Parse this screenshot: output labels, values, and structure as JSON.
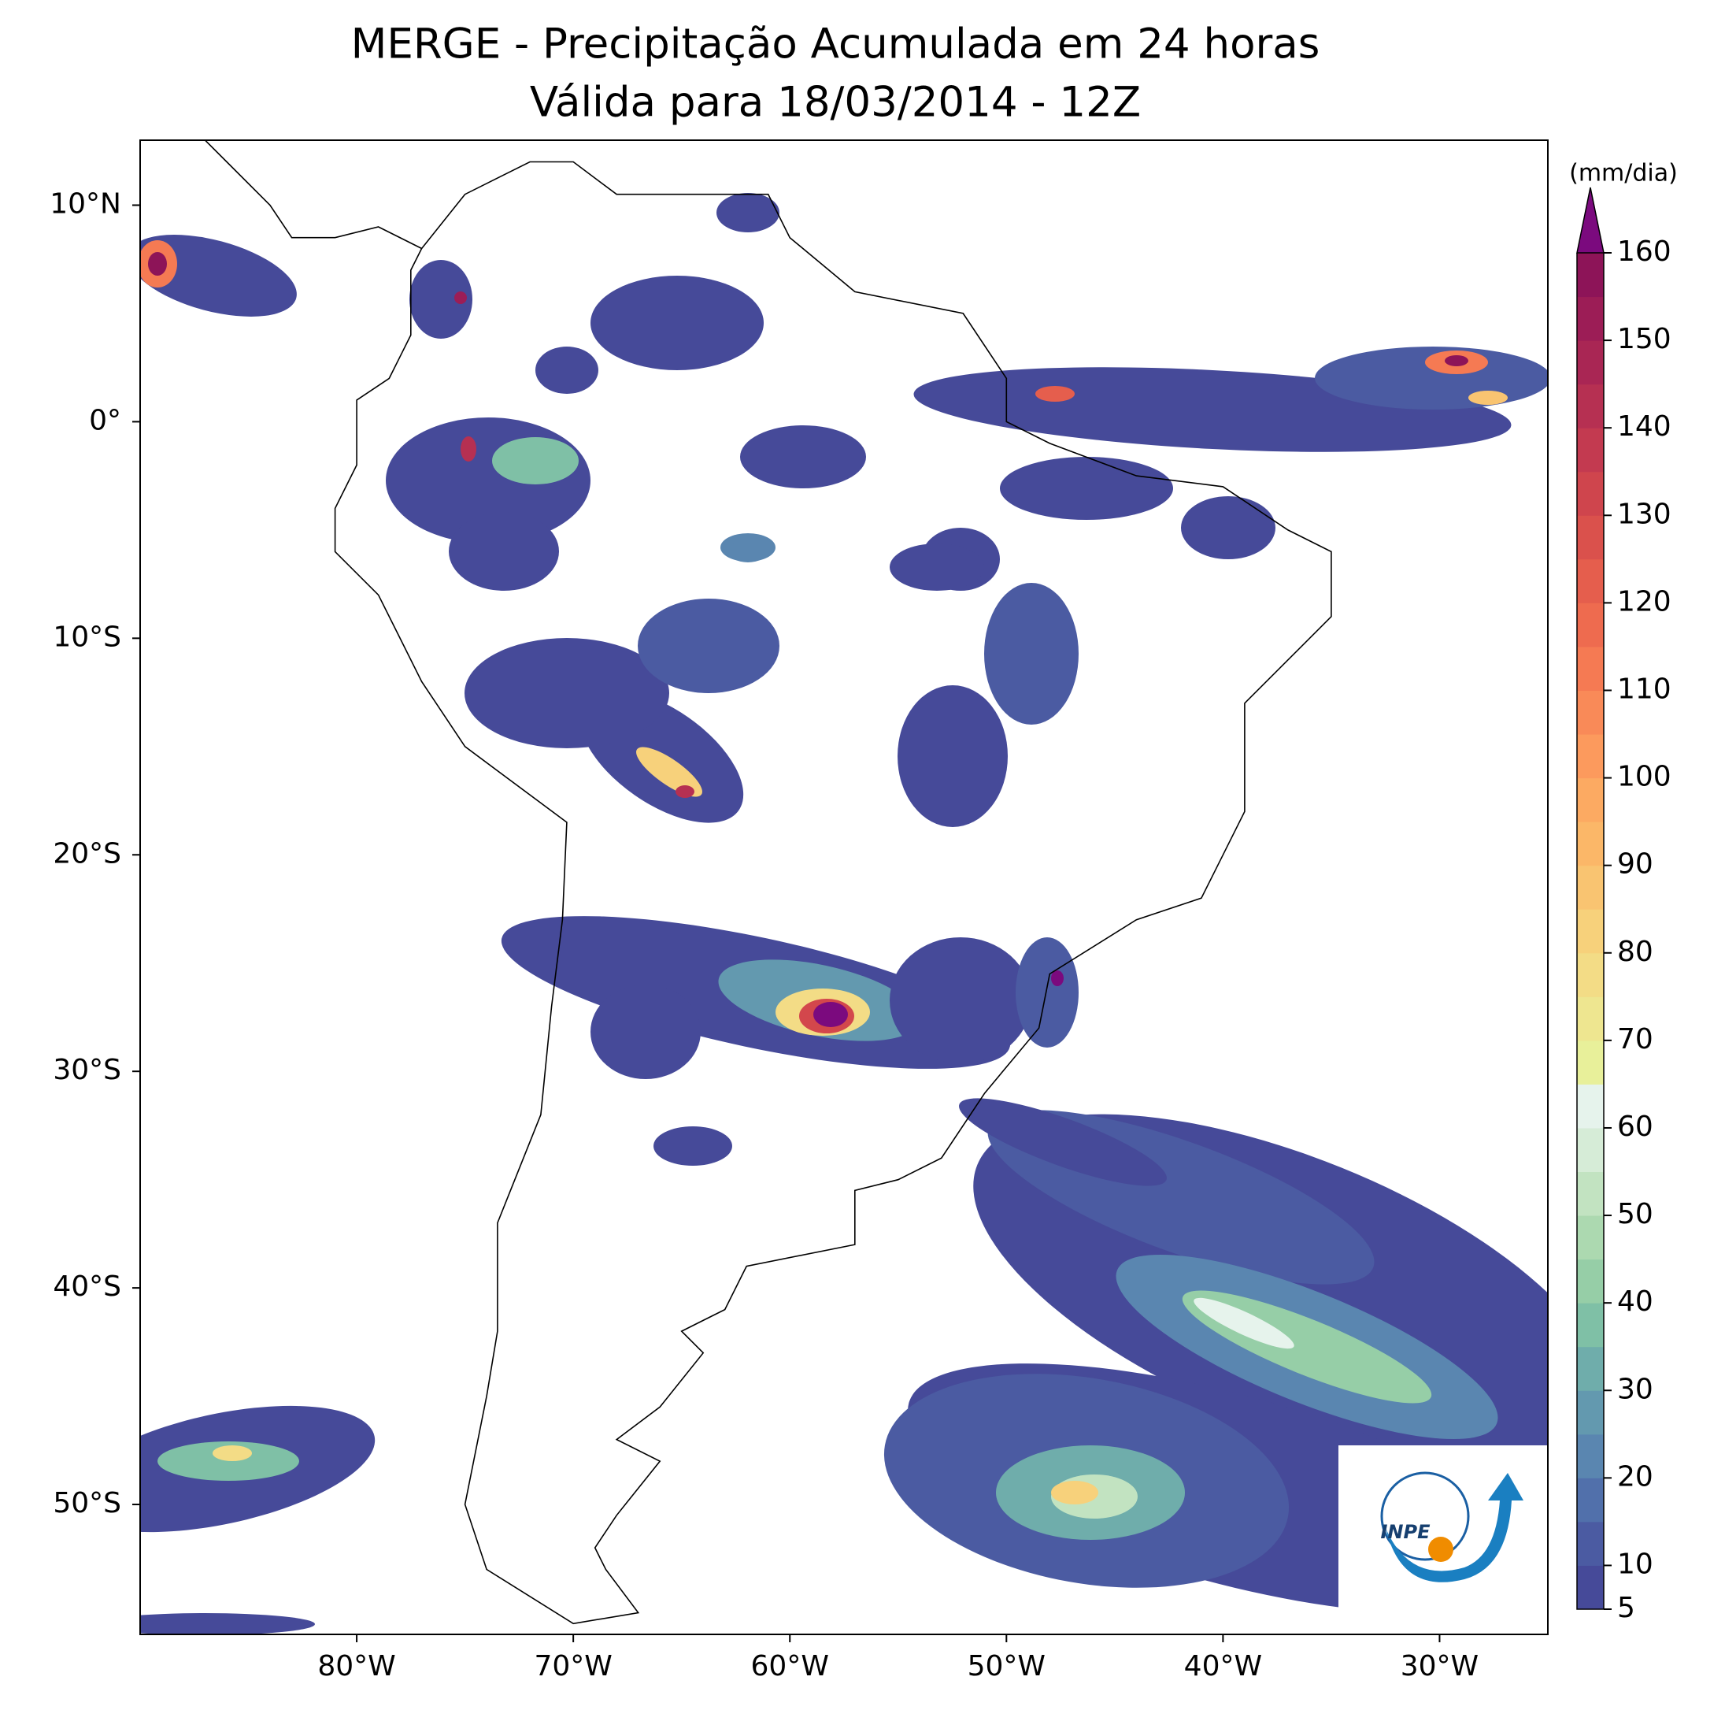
{
  "map": {
    "title": [
      "MERGE - Precipitação Acumulada em 24 horas",
      "Válida para 18/03/2014 - 12Z"
    ],
    "extent": {
      "lon": [
        -90,
        -25
      ],
      "lat": [
        -56,
        13
      ]
    },
    "lon_ticks": [
      {
        "value": -80,
        "label": "80°W"
      },
      {
        "value": -70,
        "label": "70°W"
      },
      {
        "value": -60,
        "label": "60°W"
      },
      {
        "value": -50,
        "label": "50°W"
      },
      {
        "value": -40,
        "label": "40°W"
      },
      {
        "value": -30,
        "label": "30°W"
      }
    ],
    "lat_ticks": [
      {
        "value": 10,
        "label": "10°N"
      },
      {
        "value": 0,
        "label": "0°"
      },
      {
        "value": -10,
        "label": "10°S"
      },
      {
        "value": -20,
        "label": "20°S"
      },
      {
        "value": -30,
        "label": "30°S"
      },
      {
        "value": -40,
        "label": "40°S"
      },
      {
        "value": -50,
        "label": "50°S"
      }
    ],
    "colorbar": {
      "label": "(mm/dia)",
      "lim": [
        5,
        160
      ],
      "ticks": [
        5,
        10,
        20,
        30,
        40,
        50,
        60,
        70,
        80,
        90,
        100,
        110,
        120,
        130,
        140,
        150,
        160
      ],
      "colors": [
        "#464a99",
        "#4b5ba2",
        "#5170ab",
        "#5a86b0",
        "#6399af",
        "#6fadab",
        "#7fc0a6",
        "#96cea7",
        "#acd9b0",
        "#c2e3c1",
        "#d6ecd7",
        "#e6f3ec",
        "#e8f09a",
        "#eee690",
        "#f3dc86",
        "#f7d17b",
        "#f9c471",
        "#fbb768",
        "#fcaa62",
        "#fc9a5d",
        "#f98a58",
        "#f57a53",
        "#ee6b4f",
        "#e55e4d",
        "#da514c",
        "#cf454d",
        "#c33a50",
        "#b63052",
        "#a92654",
        "#9c1d56",
        "#8d1458"
      ],
      "over_color": "#7b0a7e"
    },
    "logo": "INPE"
  }
}
